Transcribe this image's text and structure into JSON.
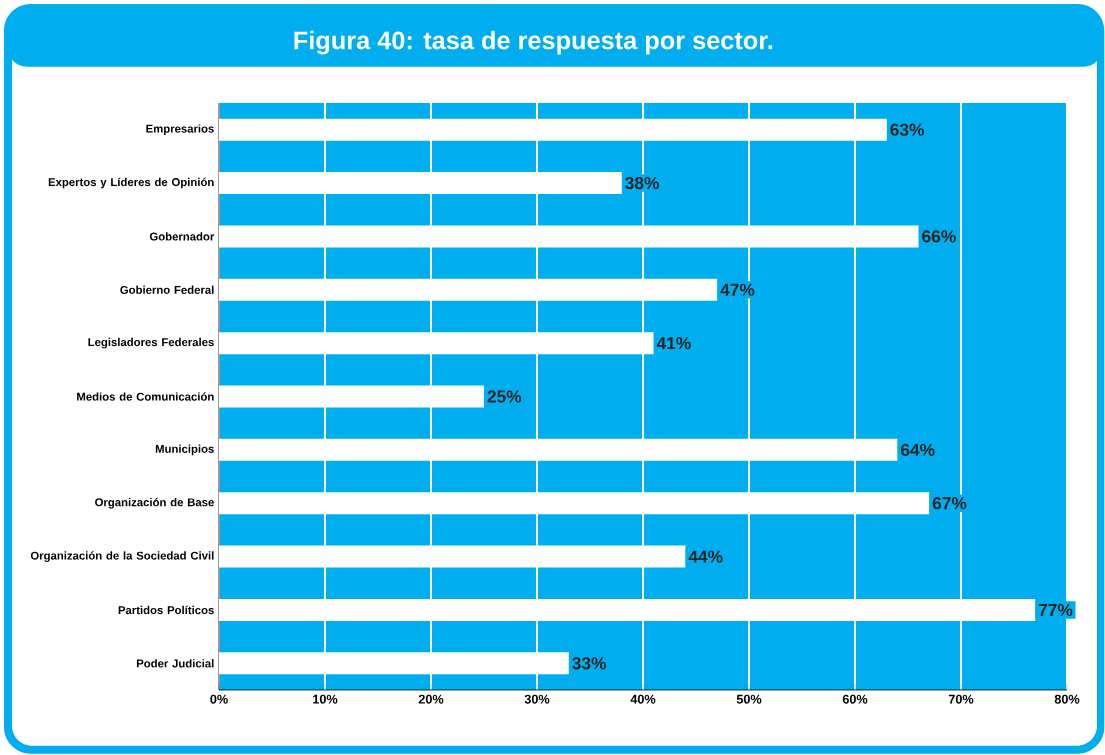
{
  "chart_data": {
    "type": "bar",
    "orientation": "horizontal",
    "title": "Figura 40: tasa de respuesta por sector.",
    "categories": [
      "Empresarios",
      "Expertos y Líderes de Opinión",
      "Gobernador",
      "Gobierno  Federal",
      "Legisladores  Federales",
      "Medios de Comunicación",
      "Municipios",
      "Organización de Base",
      "Organización de la Sociedad Civil",
      "Partidos Políticos",
      "Poder Judicial"
    ],
    "values": [
      63,
      38,
      66,
      47,
      41,
      25,
      64,
      67,
      44,
      77,
      33
    ],
    "value_labels": [
      "63%",
      "38%",
      "66%",
      "47%",
      "41%",
      "25%",
      "64%",
      "67%",
      "44%",
      "77%",
      "33%"
    ],
    "color": "#ffffff",
    "xlim": [
      0,
      80
    ],
    "xticks": [
      {
        "value": 0,
        "label": "0%"
      },
      {
        "value": 10,
        "label": "10%"
      },
      {
        "value": 20,
        "label": "20%"
      },
      {
        "value": 30,
        "label": "30%"
      },
      {
        "value": 40,
        "label": "40%"
      },
      {
        "value": 50,
        "label": "50%"
      },
      {
        "value": 60,
        "label": "60%"
      },
      {
        "value": 70,
        "label": "70%"
      },
      {
        "value": 80,
        "label": "80%"
      }
    ],
    "grid": "x"
  }
}
